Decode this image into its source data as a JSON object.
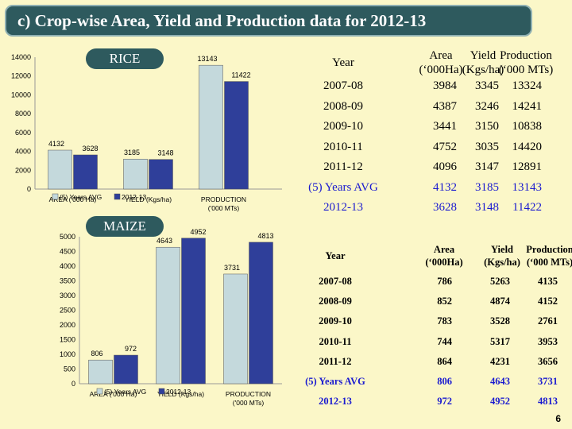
{
  "title": "c) Crop-wise Area, Yield and Production data for 2012-13",
  "page_number": "6",
  "rice": {
    "label": "RICE",
    "table": {
      "headers": [
        "Year",
        "Area",
        "Yield",
        "Production"
      ],
      "units": [
        "(‘000Ha)",
        "(Kgs/ha)",
        "(‘000 MTs)"
      ],
      "rows": [
        [
          "2007-08",
          "3984",
          "3345",
          "13324"
        ],
        [
          "2008-09",
          "4387",
          "3246",
          "14241"
        ],
        [
          "2009-10",
          "3441",
          "3150",
          "10838"
        ],
        [
          "2010-11",
          "4752",
          "3035",
          "14420"
        ],
        [
          "2011-12",
          "4096",
          "3147",
          "12891"
        ],
        [
          "(5) Years AVG",
          "4132",
          "3185",
          "13143"
        ],
        [
          "2012-13",
          "3628",
          "3148",
          "11422"
        ]
      ]
    }
  },
  "maize": {
    "label": "MAIZE",
    "table": {
      "headers": [
        "Year",
        "Area",
        "Yield",
        "Production"
      ],
      "units": [
        "(‘000Ha)",
        "(Kgs/ha)",
        "(‘000 MTs)"
      ],
      "rows": [
        [
          "2007-08",
          "786",
          "5263",
          "4135"
        ],
        [
          "2008-09",
          "852",
          "4874",
          "4152"
        ],
        [
          "2009-10",
          "783",
          "3528",
          "2761"
        ],
        [
          "2010-11",
          "744",
          "5317",
          "3953"
        ],
        [
          "2011-12",
          "864",
          "4231",
          "3656"
        ],
        [
          "(5) Years AVG",
          "806",
          "4643",
          "3731"
        ],
        [
          "2012-13",
          "972",
          "4952",
          "4813"
        ]
      ]
    }
  },
  "chart_data": [
    {
      "type": "bar",
      "title": "RICE",
      "categories": [
        "AREA ('000 Ha)",
        "YIELD (Kgs/ha)",
        "PRODUCTION ('000 MTs)"
      ],
      "series": [
        {
          "name": "(5) Years AVG",
          "values": [
            4132,
            3185,
            13143
          ],
          "color": "#c4d9dc"
        },
        {
          "name": "2012-13",
          "values": [
            3628,
            3148,
            11422
          ],
          "color": "#2f3f9a"
        }
      ],
      "yticks": [
        "0",
        "2000",
        "4000",
        "6000",
        "8000",
        "10000",
        "12000",
        "14000"
      ],
      "ylim": [
        0,
        14000
      ],
      "legend": "bottom-left"
    },
    {
      "type": "bar",
      "title": "MAIZE",
      "categories": [
        "AREA ('000 Ha)",
        "YIELD (Kgs/ha)",
        "PRODUCTION ('000 MTs)"
      ],
      "series": [
        {
          "name": "(5) Years AVG",
          "values": [
            806,
            4643,
            3731
          ],
          "color": "#c4d9dc"
        },
        {
          "name": "2012-13",
          "values": [
            972,
            4952,
            4813
          ],
          "color": "#2f3f9a"
        }
      ],
      "yticks": [
        "0",
        "500",
        "1000",
        "1500",
        "2000",
        "2500",
        "3000",
        "3500",
        "4000",
        "4500",
        "5000"
      ],
      "ylim": [
        0,
        5000
      ],
      "legend": "bottom-left"
    }
  ]
}
